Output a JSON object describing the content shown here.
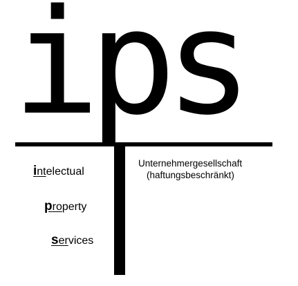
{
  "logo": {
    "letters": "ips",
    "company_name": "Unternehmergesellschaft",
    "company_form": "(haftungsbeschränkt)",
    "services": [
      {
        "initial": "i",
        "underlined": "nt",
        "rest": "electual"
      },
      {
        "initial": "p",
        "underlined": "ro",
        "rest": "perty"
      },
      {
        "initial": "s",
        "underlined": "er",
        "rest": "vices"
      }
    ]
  },
  "colors": {
    "ink": "#000000",
    "background": "#ffffff"
  }
}
